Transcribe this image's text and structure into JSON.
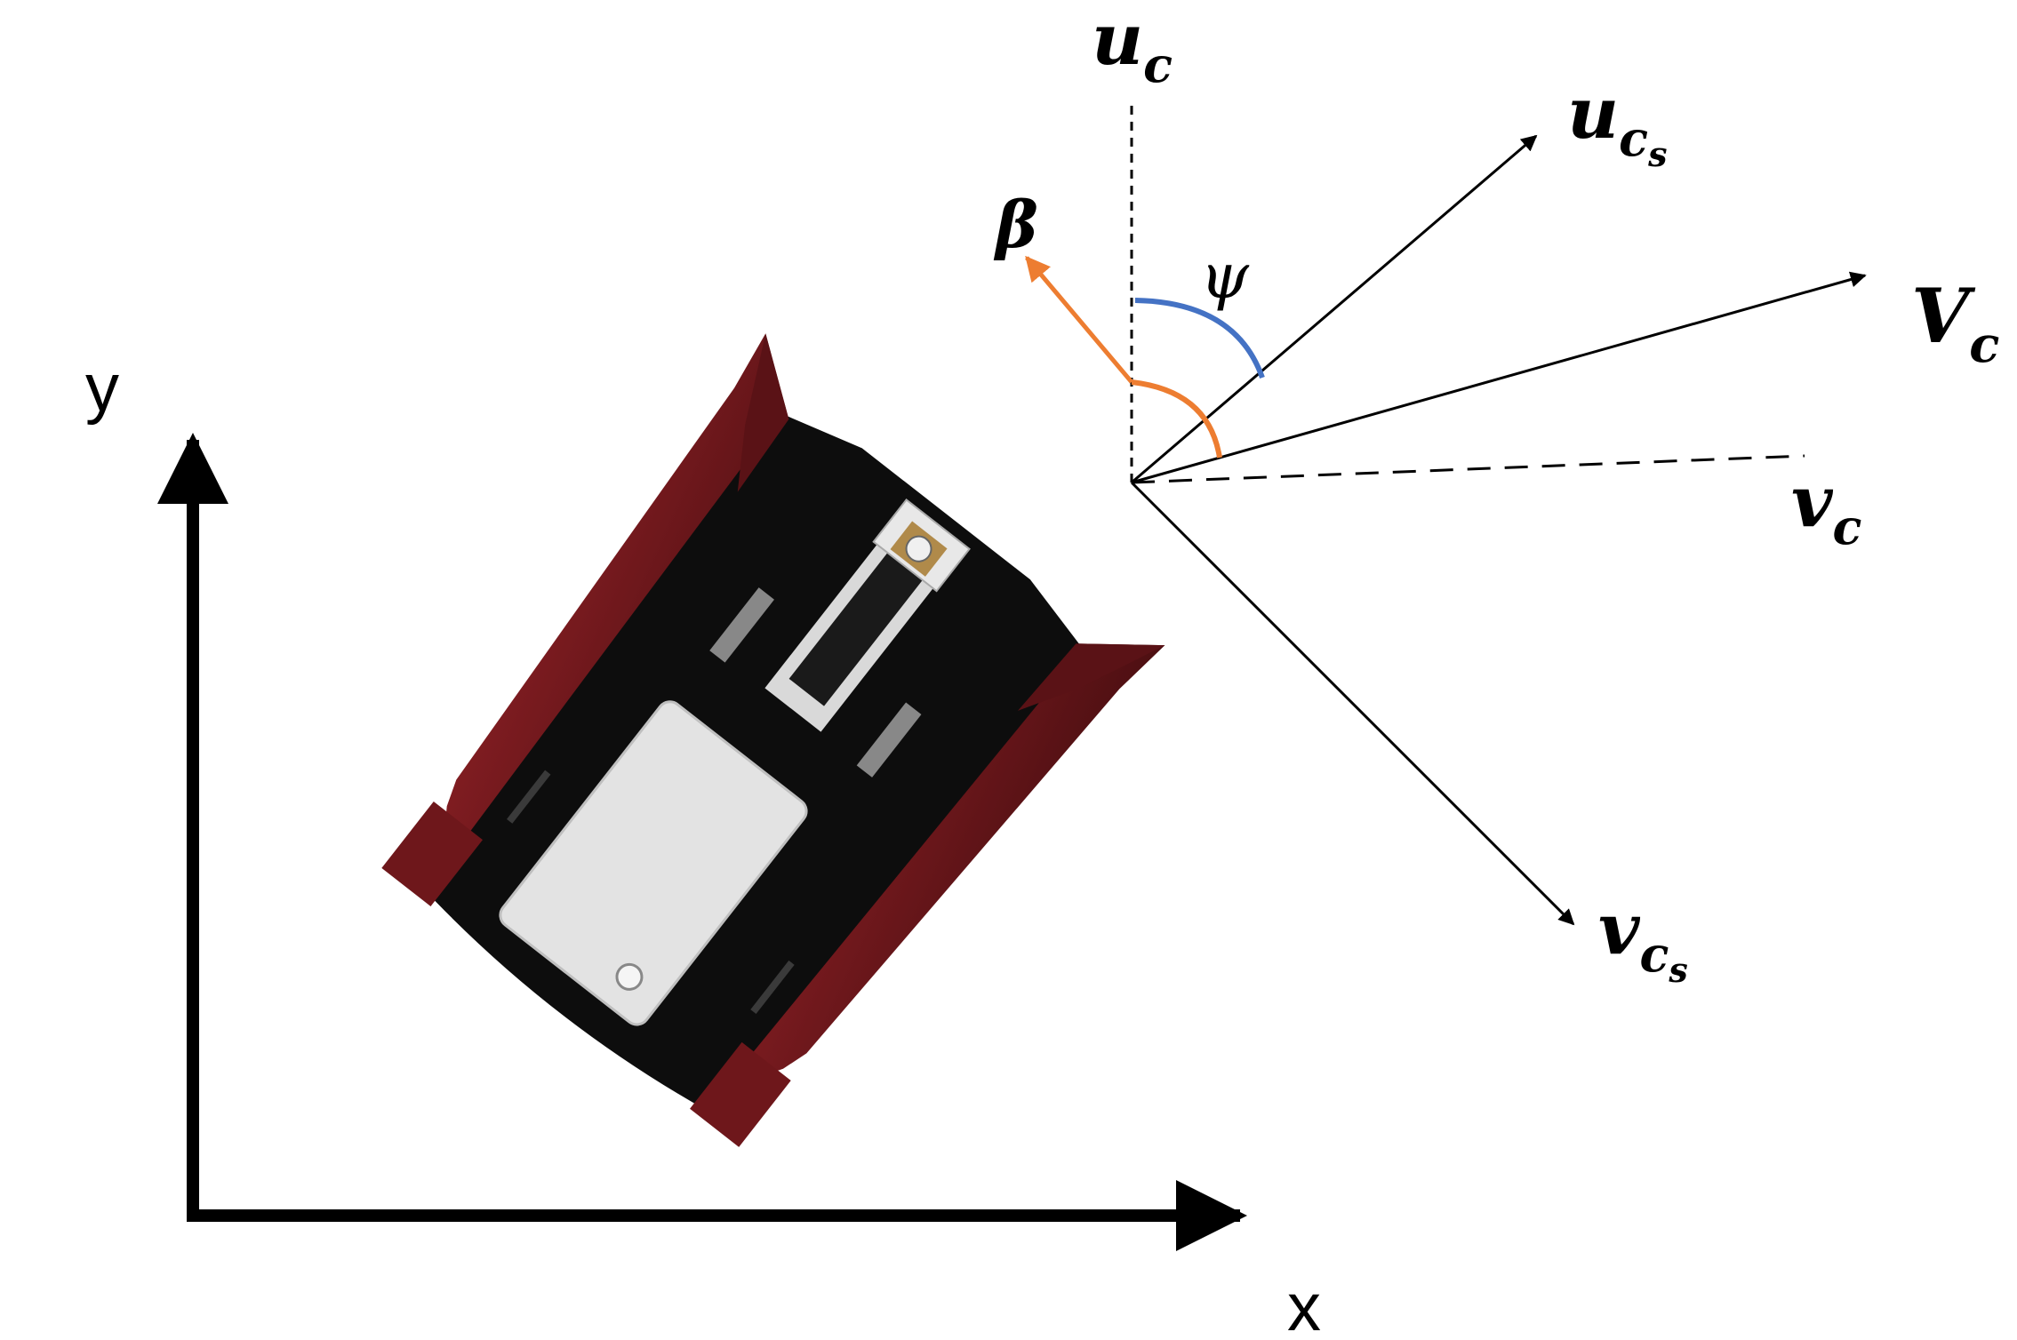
{
  "labels": {
    "y_axis": "y",
    "x_axis": "x",
    "u_c": "u",
    "u_c_sub": "c",
    "u_cs": "u",
    "u_cs_sub": "c",
    "u_cs_subsub": "s",
    "V_c": "V",
    "V_c_sub": "c",
    "v_c": "v",
    "v_c_sub": "c",
    "v_cs": "v",
    "v_cs_sub": "c",
    "v_cs_subsub": "s",
    "beta": "β",
    "psi": "ψ"
  },
  "colors": {
    "background": "#ffffff",
    "axes": "#000000",
    "vectors": "#000000",
    "beta_arc": "#ed7d31",
    "psi_arc": "#4472c4",
    "hull_red": "#7a1a1e",
    "hull_dark_red": "#4d0f12",
    "hull_black": "#0d0d0d",
    "deck_panel": "#e6e6e6"
  },
  "icons": {
    "vessel": "catamaran-vessel-top-view"
  }
}
